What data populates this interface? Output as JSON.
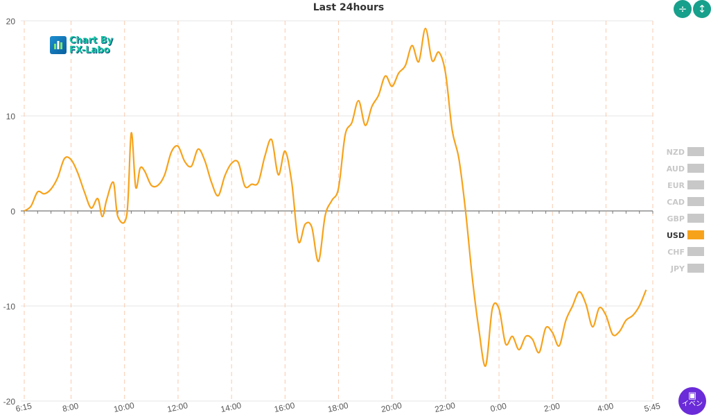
{
  "chart_data": {
    "type": "line",
    "title": "Last 24hours",
    "xlabel": "",
    "ylabel": "",
    "ylim": [
      -20,
      20
    ],
    "yticks": [
      "20",
      "10",
      "0",
      "-10",
      "-20"
    ],
    "xticks": [
      "6:15",
      "8:00",
      "10:00",
      "12:00",
      "14:00",
      "16:00",
      "18:00",
      "20:00",
      "22:00",
      "0:00",
      "2:00",
      "4:00",
      "5:45"
    ],
    "grid": true,
    "legend_position": "right",
    "series": [
      {
        "name": "USD",
        "color": "#f7a21b",
        "points": [
          [
            "6:15",
            0
          ],
          [
            "6:30",
            0.5
          ],
          [
            "6:45",
            2
          ],
          [
            "7:00",
            1.8
          ],
          [
            "7:15",
            2.3
          ],
          [
            "7:30",
            3.5
          ],
          [
            "7:45",
            5.5
          ],
          [
            "8:00",
            5.4
          ],
          [
            "8:15",
            4
          ],
          [
            "8:30",
            2
          ],
          [
            "8:45",
            0.3
          ],
          [
            "9:00",
            1.3
          ],
          [
            "9:10",
            -0.6
          ],
          [
            "9:20",
            1.2
          ],
          [
            "9:35",
            3
          ],
          [
            "9:45",
            -0.6
          ],
          [
            "10:05",
            -0.4
          ],
          [
            "10:15",
            8.2
          ],
          [
            "10:25",
            2.5
          ],
          [
            "10:35",
            4.5
          ],
          [
            "10:45",
            4.2
          ],
          [
            "11:00",
            2.7
          ],
          [
            "11:15",
            2.7
          ],
          [
            "11:30",
            3.8
          ],
          [
            "11:45",
            6.2
          ],
          [
            "12:00",
            6.8
          ],
          [
            "12:15",
            5.2
          ],
          [
            "12:30",
            4.7
          ],
          [
            "12:45",
            6.5
          ],
          [
            "13:00",
            5.3
          ],
          [
            "13:15",
            3
          ],
          [
            "13:30",
            1.6
          ],
          [
            "13:45",
            3.7
          ],
          [
            "14:00",
            5
          ],
          [
            "14:15",
            5.1
          ],
          [
            "14:30",
            2.6
          ],
          [
            "14:45",
            2.8
          ],
          [
            "15:00",
            3
          ],
          [
            "15:15",
            5.8
          ],
          [
            "15:30",
            7.5
          ],
          [
            "15:45",
            3.8
          ],
          [
            "16:00",
            6.3
          ],
          [
            "16:15",
            3
          ],
          [
            "16:30",
            -3.2
          ],
          [
            "16:45",
            -1.4
          ],
          [
            "17:00",
            -1.7
          ],
          [
            "17:15",
            -5.3
          ],
          [
            "17:30",
            -0.5
          ],
          [
            "17:45",
            1.1
          ],
          [
            "18:00",
            2.4
          ],
          [
            "18:15",
            8
          ],
          [
            "18:30",
            9.3
          ],
          [
            "18:45",
            11.6
          ],
          [
            "19:00",
            9
          ],
          [
            "19:15",
            11
          ],
          [
            "19:30",
            12.2
          ],
          [
            "19:45",
            14.2
          ],
          [
            "20:00",
            13.1
          ],
          [
            "20:15",
            14.5
          ],
          [
            "20:30",
            15.3
          ],
          [
            "20:45",
            17.4
          ],
          [
            "21:00",
            15.7
          ],
          [
            "21:15",
            19.2
          ],
          [
            "21:30",
            15.8
          ],
          [
            "21:45",
            16.7
          ],
          [
            "22:00",
            14.5
          ],
          [
            "22:15",
            8.5
          ],
          [
            "22:30",
            5.5
          ],
          [
            "22:45",
            0
          ],
          [
            "23:00",
            -7
          ],
          [
            "23:15",
            -12.5
          ],
          [
            "23:30",
            -16.3
          ],
          [
            "23:45",
            -10.3
          ],
          [
            "0:00",
            -10.3
          ],
          [
            "0:15",
            -14
          ],
          [
            "0:30",
            -13.2
          ],
          [
            "0:45",
            -14.6
          ],
          [
            "1:00",
            -13.2
          ],
          [
            "1:15",
            -13.5
          ],
          [
            "1:30",
            -14.9
          ],
          [
            "1:45",
            -12.3
          ],
          [
            "2:00",
            -12.8
          ],
          [
            "2:15",
            -14.2
          ],
          [
            "2:30",
            -11.5
          ],
          [
            "2:45",
            -10
          ],
          [
            "3:00",
            -8.5
          ],
          [
            "3:15",
            -9.8
          ],
          [
            "3:30",
            -12.2
          ],
          [
            "3:45",
            -10.2
          ],
          [
            "4:00",
            -11
          ],
          [
            "4:15",
            -13
          ],
          [
            "4:30",
            -12.7
          ],
          [
            "4:45",
            -11.5
          ],
          [
            "5:00",
            -11
          ],
          [
            "5:15",
            -10
          ],
          [
            "5:30",
            -8.3
          ]
        ]
      }
    ]
  },
  "logo": {
    "line1": "Chart By",
    "line2": "FX-Labo"
  },
  "controls": {
    "compress_icon": "compress-vertical-icon",
    "expand_icon": "expand-vertical-icon",
    "event_button_label": "イベン",
    "event_icon": "calendar-icon"
  },
  "legend": {
    "items": [
      {
        "label": "NZD",
        "active": false
      },
      {
        "label": "AUD",
        "active": false
      },
      {
        "label": "EUR",
        "active": false
      },
      {
        "label": "CAD",
        "active": false
      },
      {
        "label": "GBP",
        "active": false
      },
      {
        "label": "USD",
        "active": true
      },
      {
        "label": "CHF",
        "active": false
      },
      {
        "label": "JPY",
        "active": false
      }
    ],
    "active_color": "#f7a21b",
    "inactive_color": "#c8c8c8"
  }
}
